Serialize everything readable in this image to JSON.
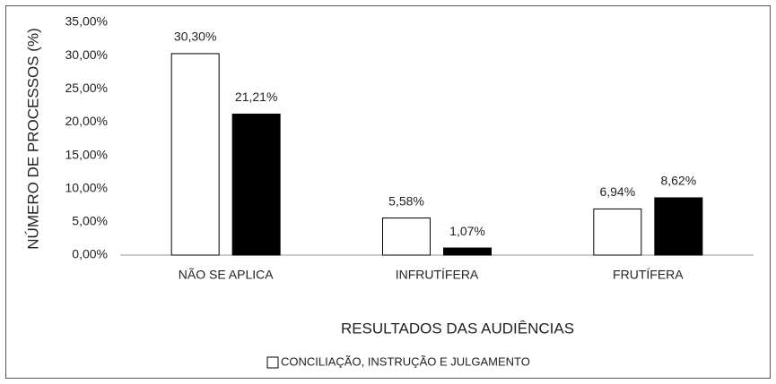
{
  "chart_data": {
    "type": "bar",
    "x_label": "RESULTADOS DAS AUDIÊNCIAS",
    "y_label": "NÚMERO DE PROCESSOS (%)",
    "categories": [
      "NÃO SE APLICA",
      "INFRUTÍFERA",
      "FRUTÍFERA"
    ],
    "series": [
      {
        "name": "CONCILIAÇÃO, INSTRUÇÃO E JULGAMENTO",
        "color": "#ffffff",
        "values": [
          30.3,
          5.58,
          6.94
        ],
        "value_labels": [
          "30,30%",
          "5,58%",
          "6,94%"
        ]
      },
      {
        "color": "#000000",
        "values": [
          21.21,
          1.07,
          8.62
        ],
        "value_labels": [
          "21,21%",
          "1,07%",
          "8,62%"
        ]
      }
    ],
    "ylim": [
      0,
      35
    ],
    "yticks": [
      {
        "value": 0,
        "label": "0,00%"
      },
      {
        "value": 5,
        "label": "5,00%"
      },
      {
        "value": 10,
        "label": "10,00%"
      },
      {
        "value": 15,
        "label": "15,00%"
      },
      {
        "value": 20,
        "label": "20,00%"
      },
      {
        "value": 25,
        "label": "25,00%"
      },
      {
        "value": 30,
        "label": "30,00%"
      },
      {
        "value": 35,
        "label": "35,00%"
      }
    ],
    "grid": false,
    "legend": "bottom"
  }
}
